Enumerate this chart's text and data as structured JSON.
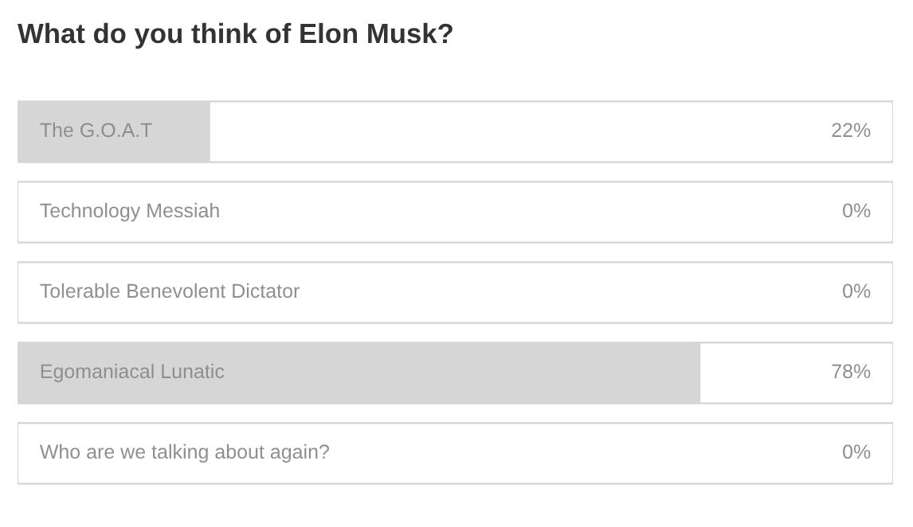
{
  "chart_data": {
    "type": "bar",
    "orientation": "horizontal",
    "title": "What do you think of Elon Musk?",
    "categories": [
      "The G.O.A.T",
      "Technology Messiah",
      "Tolerable Benevolent Dictator",
      "Egomaniacal Lunatic",
      "Who are we talking about again?"
    ],
    "values": [
      22,
      0,
      0,
      78,
      0
    ],
    "value_labels": [
      "22%",
      "0%",
      "0%",
      "78%",
      "0%"
    ],
    "color": "#d6d6d6",
    "xlim": [
      0,
      100
    ]
  }
}
